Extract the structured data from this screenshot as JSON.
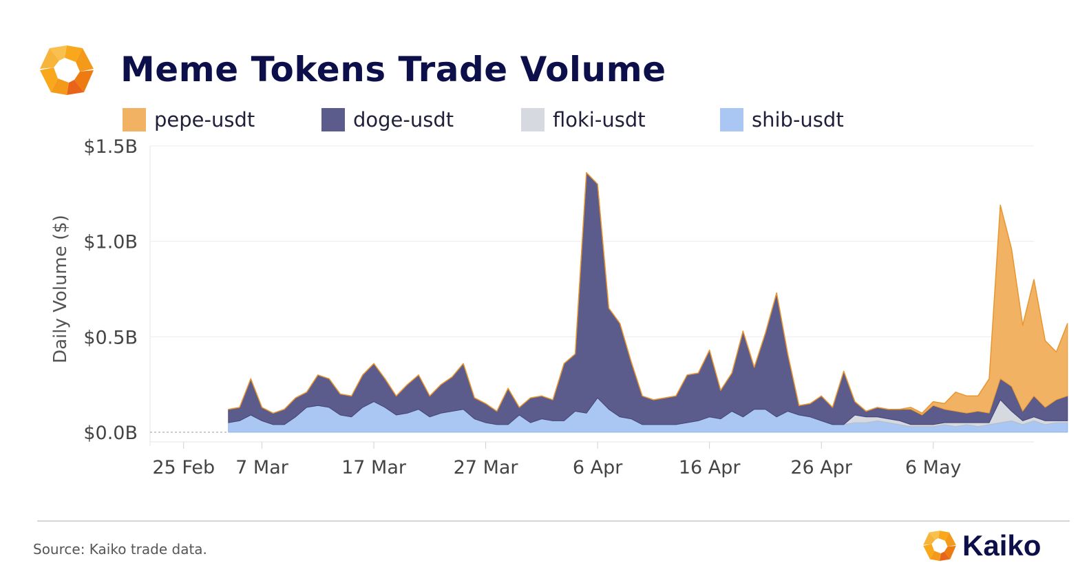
{
  "header": {
    "title": "Meme Tokens Trade Volume"
  },
  "footer": {
    "source": "Source: Kaiko trade data.",
    "brand": "Kaiko"
  },
  "chart_data": {
    "type": "area",
    "stacked": true,
    "title": "Meme Tokens Trade Volume",
    "xlabel": "",
    "ylabel": "Daily Volume ($)",
    "ylim": [
      0,
      1.5
    ],
    "y_unit": "$B",
    "y_ticks": [
      {
        "value": 0,
        "label": "$0.0B"
      },
      {
        "value": 0.5,
        "label": "$0.5B"
      },
      {
        "value": 1.0,
        "label": "$1.0B"
      },
      {
        "value": 1.5,
        "label": "$1.5B"
      }
    ],
    "x_ticks": [
      {
        "day": 2,
        "label": "25 Feb"
      },
      {
        "day": 9,
        "label": "7 Mar"
      },
      {
        "day": 19,
        "label": "17 Mar"
      },
      {
        "day": 29,
        "label": "27 Mar"
      },
      {
        "day": 39,
        "label": "6 Apr"
      },
      {
        "day": 49,
        "label": "16 Apr"
      },
      {
        "day": 59,
        "label": "26 Apr"
      },
      {
        "day": 69,
        "label": "6 May"
      }
    ],
    "x_range_days": [
      -1,
      78
    ],
    "x_start_day": 6,
    "legend_position": "top",
    "series": [
      {
        "name": "shib-usdt",
        "color": "#a9c7f2",
        "values": [
          0.05,
          0.06,
          0.09,
          0.06,
          0.04,
          0.04,
          0.08,
          0.13,
          0.14,
          0.13,
          0.09,
          0.08,
          0.13,
          0.16,
          0.13,
          0.09,
          0.1,
          0.12,
          0.08,
          0.1,
          0.11,
          0.12,
          0.07,
          0.05,
          0.04,
          0.04,
          0.09,
          0.05,
          0.07,
          0.06,
          0.06,
          0.11,
          0.1,
          0.18,
          0.12,
          0.08,
          0.07,
          0.04,
          0.04,
          0.04,
          0.04,
          0.05,
          0.06,
          0.08,
          0.07,
          0.11,
          0.08,
          0.12,
          0.12,
          0.08,
          0.11,
          0.09,
          0.08,
          0.06,
          0.04,
          0.04,
          0.05,
          0.05,
          0.06,
          0.05,
          0.04,
          0.03,
          0.03,
          0.03,
          0.04,
          0.03,
          0.04,
          0.03,
          0.04,
          0.05,
          0.06,
          0.04,
          0.06,
          0.04,
          0.05,
          0.05
        ]
      },
      {
        "name": "floki-usdt",
        "color": "#d6dae0",
        "values": [
          0.0,
          0.0,
          0.0,
          0.0,
          0.0,
          0.0,
          0.0,
          0.0,
          0.0,
          0.0,
          0.0,
          0.0,
          0.0,
          0.0,
          0.0,
          0.0,
          0.0,
          0.0,
          0.0,
          0.0,
          0.0,
          0.0,
          0.0,
          0.0,
          0.0,
          0.0,
          0.0,
          0.0,
          0.0,
          0.0,
          0.0,
          0.0,
          0.0,
          0.0,
          0.0,
          0.0,
          0.0,
          0.0,
          0.0,
          0.0,
          0.0,
          0.0,
          0.0,
          0.0,
          0.0,
          0.0,
          0.0,
          0.0,
          0.0,
          0.0,
          0.0,
          0.0,
          0.0,
          0.0,
          0.0,
          0.0,
          0.04,
          0.03,
          0.02,
          0.02,
          0.02,
          0.01,
          0.01,
          0.01,
          0.01,
          0.02,
          0.01,
          0.02,
          0.01,
          0.12,
          0.05,
          0.02,
          0.02,
          0.02,
          0.01,
          0.01
        ]
      },
      {
        "name": "doge-usdt",
        "color": "#5b5b8c",
        "values": [
          0.07,
          0.07,
          0.19,
          0.07,
          0.06,
          0.08,
          0.1,
          0.08,
          0.16,
          0.15,
          0.11,
          0.11,
          0.17,
          0.2,
          0.15,
          0.1,
          0.15,
          0.18,
          0.11,
          0.15,
          0.18,
          0.24,
          0.11,
          0.1,
          0.07,
          0.19,
          0.04,
          0.13,
          0.12,
          0.11,
          0.3,
          0.3,
          1.26,
          1.12,
          0.53,
          0.49,
          0.3,
          0.15,
          0.13,
          0.14,
          0.15,
          0.25,
          0.25,
          0.35,
          0.15,
          0.2,
          0.45,
          0.22,
          0.4,
          0.65,
          0.3,
          0.05,
          0.07,
          0.13,
          0.09,
          0.28,
          0.07,
          0.03,
          0.05,
          0.05,
          0.06,
          0.08,
          0.05,
          0.1,
          0.07,
          0.06,
          0.05,
          0.06,
          0.05,
          0.11,
          0.13,
          0.05,
          0.11,
          0.07,
          0.11,
          0.13
        ]
      },
      {
        "name": "pepe-usdt",
        "color": "#f2b263",
        "values": [
          0,
          0,
          0,
          0,
          0,
          0,
          0,
          0,
          0,
          0,
          0,
          0,
          0,
          0,
          0,
          0,
          0,
          0,
          0,
          0,
          0,
          0,
          0,
          0,
          0,
          0,
          0,
          0,
          0,
          0,
          0,
          0,
          0,
          0,
          0,
          0,
          0,
          0,
          0,
          0,
          0,
          0,
          0,
          0,
          0,
          0,
          0,
          0,
          0,
          0,
          0,
          0,
          0,
          0,
          0,
          0,
          0,
          0,
          0,
          0,
          0,
          0.01,
          0.01,
          0.02,
          0.03,
          0.1,
          0.09,
          0.08,
          0.18,
          0.91,
          0.72,
          0.45,
          0.61,
          0.35,
          0.25,
          0.38
        ]
      }
    ]
  },
  "legend_order": [
    "pepe-usdt",
    "doge-usdt",
    "floki-usdt",
    "shib-usdt"
  ]
}
